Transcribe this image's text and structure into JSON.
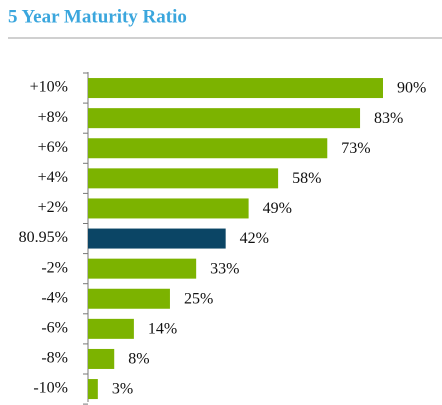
{
  "chart_data": {
    "type": "hbar",
    "title": "5 Year Maturity Ratio",
    "categories": [
      "+10%",
      "+8%",
      "+6%",
      "+4%",
      "+2%",
      "80.95%",
      "-2%",
      "-4%",
      "-6%",
      "-8%",
      "-10%"
    ],
    "values": [
      90,
      83,
      73,
      58,
      49,
      42,
      33,
      25,
      14,
      8,
      3
    ],
    "value_labels": [
      "90%",
      "83%",
      "73%",
      "58%",
      "49%",
      "42%",
      "33%",
      "25%",
      "14%",
      "8%",
      "3%"
    ],
    "colors": [
      "#7cb300",
      "#7cb300",
      "#7cb300",
      "#7cb300",
      "#7cb300",
      "#0b4565",
      "#7cb300",
      "#7cb300",
      "#7cb300",
      "#7cb300",
      "#7cb300"
    ]
  }
}
